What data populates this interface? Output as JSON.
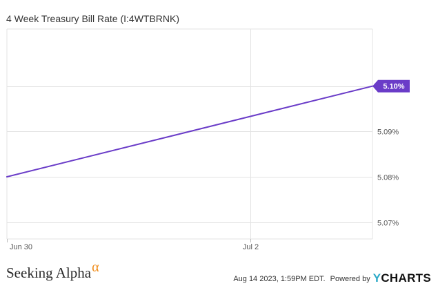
{
  "header": {
    "title": "4 Week Treasury Bill Rate (I:4WTBRNK)"
  },
  "chart_data": {
    "type": "line",
    "title": "4 Week Treasury Bill Rate (I:4WTBRNK)",
    "xlabel": "",
    "ylabel": "",
    "x_tick_labels": [
      "Jun 30",
      "Jul 2"
    ],
    "y_tick_labels": [
      "5.10%",
      "5.09%",
      "5.08%",
      "5.07%"
    ],
    "y_ticks": [
      5.1,
      5.09,
      5.08,
      5.07
    ],
    "ylim": [
      5.0663,
      5.1126
    ],
    "grid": true,
    "y_axis_side": "right",
    "series": [
      {
        "color": "#6a3cc8",
        "x": [
          "2023-06-30",
          "2023-07-03"
        ],
        "y": [
          5.08,
          5.1
        ]
      }
    ],
    "last_value_label": "5.10%"
  },
  "footer": {
    "brand": "Seeking Alpha",
    "brand_mark": "α",
    "timestamp": "Aug 14 2023, 1:59PM EDT.",
    "powered_by": "Powered by",
    "provider_prefix": "Y",
    "provider_suffix": "CHARTS"
  },
  "colors": {
    "line": "#6a3cc8",
    "grid": "#e3e3e3",
    "axis_text": "#555555",
    "badge": "#6a3cc8",
    "brand_accent": "#f08c1a",
    "ycharts_accent": "#2aa9c7"
  }
}
